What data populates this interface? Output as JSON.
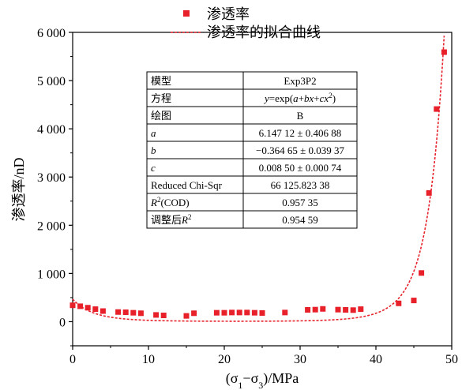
{
  "chart_data": {
    "type": "scatter",
    "xlabel": "(σ1−σ3)/MPa",
    "ylabel": "渗透率/nD",
    "xlim": [
      0,
      50
    ],
    "ylim": [
      -500,
      6000
    ],
    "x_ticks": [
      "0",
      "10",
      "20",
      "30",
      "40",
      "50"
    ],
    "y_ticks": [
      "0",
      "1 000",
      "2 000",
      "3 000",
      "4 000",
      "5 000",
      "6 000"
    ],
    "grid": false,
    "legend_position": "top-center",
    "series": [
      {
        "name": "渗透率",
        "kind": "points",
        "color": "#e8202a",
        "x": [
          0,
          1,
          2,
          3,
          4,
          6,
          7,
          8,
          9,
          11,
          12,
          15,
          16,
          19,
          20,
          21,
          22,
          23,
          24,
          25,
          28,
          31,
          32,
          33,
          35,
          36,
          37,
          38,
          43,
          45,
          46,
          47,
          48,
          49
        ],
        "y": [
          340,
          320,
          290,
          260,
          220,
          200,
          195,
          185,
          175,
          140,
          130,
          120,
          175,
          185,
          185,
          190,
          190,
          190,
          185,
          180,
          190,
          245,
          250,
          265,
          250,
          245,
          240,
          260,
          380,
          440,
          1010,
          2670,
          4410,
          5590
        ]
      },
      {
        "name": "渗透率的拟合曲线",
        "kind": "fit",
        "color": "#e8202a",
        "model": {
          "a": 6.14712,
          "b": -0.36465,
          "c": 0.0085
        }
      }
    ],
    "table": {
      "rows": [
        [
          "模型",
          "Exp3P2"
        ],
        [
          "方程",
          "y=exp(a+bx+cx²)"
        ],
        [
          "绘图",
          "B"
        ],
        [
          "a",
          "6.147 12 ± 0.406 88"
        ],
        [
          "b",
          "−0.364 65 ± 0.039 37"
        ],
        [
          "c",
          "0.008 50 ± 0.000 74"
        ],
        [
          "Reduced Chi-Sqr",
          "66 125.823 38"
        ],
        [
          "R²(COD)",
          "0.957 35"
        ],
        [
          "调整后R²",
          "0.954 59"
        ]
      ]
    }
  }
}
